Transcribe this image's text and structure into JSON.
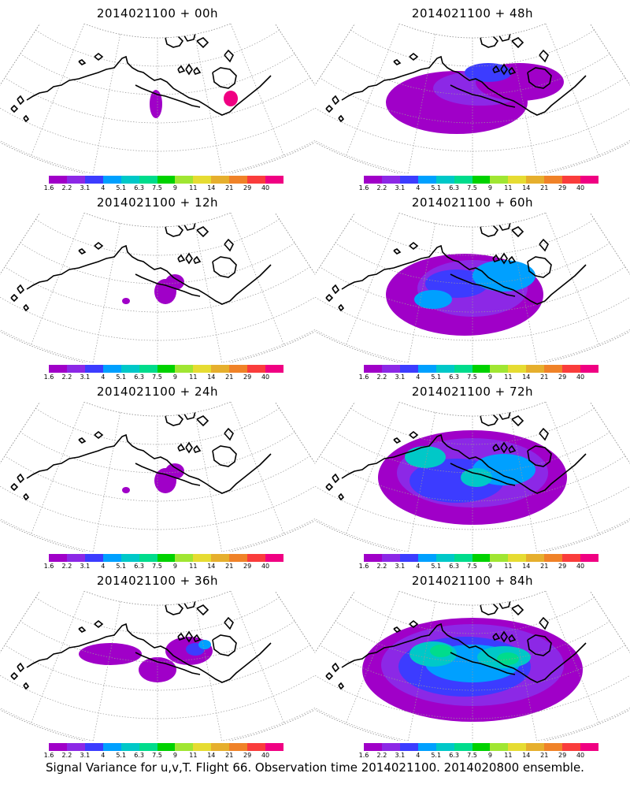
{
  "panels": [
    {
      "title": "2014021100 + 00h",
      "intensity": 0
    },
    {
      "title": "2014021100 + 48h",
      "intensity": 3
    },
    {
      "title": "2014021100 + 12h",
      "intensity": 1
    },
    {
      "title": "2014021100 + 60h",
      "intensity": 4
    },
    {
      "title": "2014021100 + 24h",
      "intensity": 1
    },
    {
      "title": "2014021100 + 72h",
      "intensity": 5
    },
    {
      "title": "2014021100 + 36h",
      "intensity": 2
    },
    {
      "title": "2014021100 + 84h",
      "intensity": 6
    }
  ],
  "colorbar": {
    "labels": [
      "1.6",
      "2.2",
      "3.1",
      "4",
      "5.1",
      "6.3",
      "7.5",
      "9",
      "11",
      "14",
      "21",
      "29",
      "40"
    ],
    "colors": [
      "#a000c8",
      "#8c28e6",
      "#3c3cff",
      "#00a0ff",
      "#00c8c8",
      "#00dc8c",
      "#00d200",
      "#a0e632",
      "#e6dc32",
      "#e6af2d",
      "#f08228",
      "#fa3c3c",
      "#f00082"
    ]
  },
  "footer": "Signal Variance for u,v,T. Flight 66. Observation time 2014021100. 2014020800 ensemble."
}
